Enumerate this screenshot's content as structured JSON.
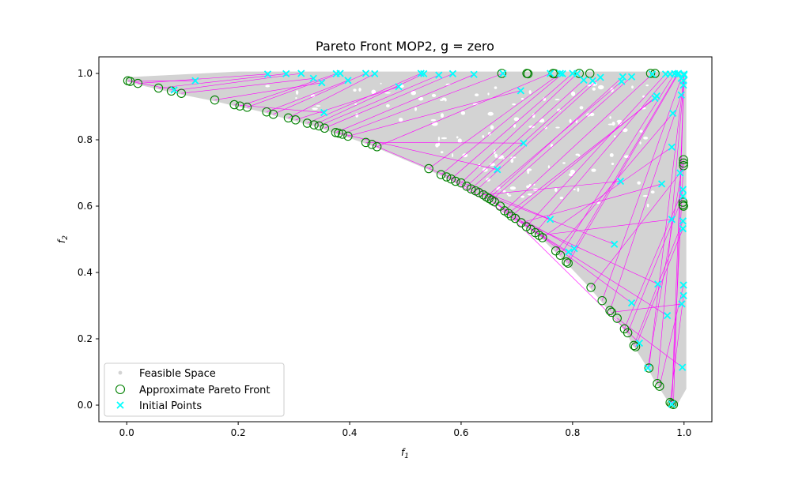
{
  "chart_data": {
    "type": "scatter",
    "title": "Pareto Front MOP2, g = zero",
    "xlabel": "f1",
    "ylabel": "f2",
    "xlim": [
      -0.05,
      1.05
    ],
    "ylim": [
      -0.05,
      1.05
    ],
    "xticks": [
      0.0,
      0.2,
      0.4,
      0.6,
      0.8,
      1.0
    ],
    "yticks": [
      0.0,
      0.2,
      0.4,
      0.6,
      0.8,
      1.0
    ],
    "xtick_labels": [
      "0.0",
      "0.2",
      "0.4",
      "0.6",
      "0.8",
      "1.0"
    ],
    "ytick_labels": [
      "0.0",
      "0.2",
      "0.4",
      "0.6",
      "0.8",
      "1.0"
    ],
    "grid": false,
    "legend_position": "lower-left",
    "colors": {
      "feasible": "#d3d3d3",
      "pareto": "#008000",
      "initial": "#00ffff",
      "connector": "#ff00ff"
    },
    "series": [
      {
        "name": "Feasible Space",
        "marker": "dot",
        "region": "filled area between the Pareto front curve f2 = 1 - exp(-((1 - f1 - ...)^2)) and the boundaries f2 = 1 (top) and f1 = 1 (right)"
      },
      {
        "name": "Approximate Pareto Front",
        "marker": "open-circle",
        "points": [
          [
            0.002,
            0.978
          ],
          [
            0.006,
            0.976
          ],
          [
            0.02,
            0.97
          ],
          [
            0.057,
            0.956
          ],
          [
            0.08,
            0.947
          ],
          [
            0.098,
            0.94
          ],
          [
            0.158,
            0.92
          ],
          [
            0.193,
            0.906
          ],
          [
            0.203,
            0.902
          ],
          [
            0.216,
            0.898
          ],
          [
            0.251,
            0.884
          ],
          [
            0.263,
            0.877
          ],
          [
            0.29,
            0.866
          ],
          [
            0.303,
            0.86
          ],
          [
            0.324,
            0.85
          ],
          [
            0.336,
            0.845
          ],
          [
            0.345,
            0.842
          ],
          [
            0.355,
            0.835
          ],
          [
            0.375,
            0.822
          ],
          [
            0.38,
            0.82
          ],
          [
            0.387,
            0.817
          ],
          [
            0.397,
            0.811
          ],
          [
            0.429,
            0.792
          ],
          [
            0.44,
            0.786
          ],
          [
            0.449,
            0.779
          ],
          [
            0.542,
            0.713
          ],
          [
            0.564,
            0.695
          ],
          [
            0.574,
            0.688
          ],
          [
            0.582,
            0.682
          ],
          [
            0.59,
            0.675
          ],
          [
            0.6,
            0.67
          ],
          [
            0.61,
            0.66
          ],
          [
            0.618,
            0.652
          ],
          [
            0.626,
            0.646
          ],
          [
            0.632,
            0.641
          ],
          [
            0.64,
            0.634
          ],
          [
            0.645,
            0.628
          ],
          [
            0.65,
            0.623
          ],
          [
            0.655,
            0.618
          ],
          [
            0.66,
            0.613
          ],
          [
            0.67,
            0.6
          ],
          [
            0.678,
            0.586
          ],
          [
            0.685,
            0.578
          ],
          [
            0.69,
            0.57
          ],
          [
            0.697,
            0.563
          ],
          [
            0.708,
            0.55
          ],
          [
            0.717,
            0.538
          ],
          [
            0.725,
            0.53
          ],
          [
            0.733,
            0.52
          ],
          [
            0.74,
            0.512
          ],
          [
            0.746,
            0.505
          ],
          [
            0.77,
            0.465
          ],
          [
            0.778,
            0.452
          ],
          [
            0.789,
            0.432
          ],
          [
            0.792,
            0.428
          ],
          [
            0.833,
            0.355
          ],
          [
            0.853,
            0.315
          ],
          [
            0.867,
            0.285
          ],
          [
            0.87,
            0.28
          ],
          [
            0.88,
            0.262
          ],
          [
            0.893,
            0.23
          ],
          [
            0.899,
            0.218
          ],
          [
            0.91,
            0.18
          ],
          [
            0.913,
            0.176
          ],
          [
            0.937,
            0.112
          ],
          [
            0.952,
            0.065
          ],
          [
            0.956,
            0.057
          ],
          [
            0.975,
            0.008
          ],
          [
            0.978,
            0.004
          ],
          [
            0.981,
            0.002
          ],
          [
            0.999,
            0.74
          ],
          [
            0.999,
            0.73
          ],
          [
            0.999,
            0.722
          ],
          [
            0.998,
            0.612
          ],
          [
            0.998,
            0.604
          ],
          [
            0.999,
            0.6
          ],
          [
            0.673,
            1.0
          ],
          [
            0.718,
            1.0
          ],
          [
            0.72,
            0.999
          ],
          [
            0.765,
            1.0
          ],
          [
            0.768,
            0.999
          ],
          [
            0.812,
            1.0
          ],
          [
            0.831,
            1.0
          ],
          [
            0.94,
            1.0
          ],
          [
            0.948,
            1.0
          ]
        ]
      },
      {
        "name": "Initial Points",
        "marker": "x",
        "points": [
          [
            0.085,
            0.95
          ],
          [
            0.123,
            0.978
          ],
          [
            0.253,
            0.998
          ],
          [
            0.286,
            0.999
          ],
          [
            0.313,
            1.0
          ],
          [
            0.335,
            0.985
          ],
          [
            0.35,
            0.972
          ],
          [
            0.354,
            0.882
          ],
          [
            0.376,
            0.999
          ],
          [
            0.383,
            1.0
          ],
          [
            0.397,
            0.979
          ],
          [
            0.429,
            1.0
          ],
          [
            0.445,
            0.999
          ],
          [
            0.488,
            0.96
          ],
          [
            0.528,
            1.0
          ],
          [
            0.533,
            0.999
          ],
          [
            0.56,
            0.995
          ],
          [
            0.585,
            0.999
          ],
          [
            0.623,
            0.997
          ],
          [
            0.665,
            0.71
          ],
          [
            0.675,
            1.0
          ],
          [
            0.707,
            0.948
          ],
          [
            0.712,
            0.79
          ],
          [
            0.76,
            0.56
          ],
          [
            0.76,
            1.0
          ],
          [
            0.778,
            1.0
          ],
          [
            0.782,
            0.999
          ],
          [
            0.793,
            0.462
          ],
          [
            0.8,
            1.0
          ],
          [
            0.803,
            0.472
          ],
          [
            0.808,
            0.999
          ],
          [
            0.82,
            0.98
          ],
          [
            0.836,
            0.978
          ],
          [
            0.85,
            0.988
          ],
          [
            0.875,
            0.485
          ],
          [
            0.886,
            0.675
          ],
          [
            0.888,
            0.976
          ],
          [
            0.89,
            0.99
          ],
          [
            0.906,
            0.99
          ],
          [
            0.906,
            0.308
          ],
          [
            0.92,
            0.187
          ],
          [
            0.943,
            0.998
          ],
          [
            0.948,
            0.925
          ],
          [
            0.951,
            0.932
          ],
          [
            0.953,
            0.365
          ],
          [
            0.96,
            0.667
          ],
          [
            0.967,
            0.998
          ],
          [
            0.97,
            0.27
          ],
          [
            0.975,
            0.998
          ],
          [
            0.978,
            0.56
          ],
          [
            0.978,
            0.778
          ],
          [
            0.98,
            0.88
          ],
          [
            0.983,
            0.999
          ],
          [
            0.988,
            0.998
          ],
          [
            0.99,
            1.0
          ],
          [
            0.993,
            0.7
          ],
          [
            0.995,
            0.985
          ],
          [
            0.995,
            0.935
          ],
          [
            0.996,
            0.305
          ],
          [
            0.997,
            0.114
          ],
          [
            0.998,
            0.65
          ],
          [
            0.998,
            0.63
          ],
          [
            0.998,
            0.555
          ],
          [
            0.998,
            0.532
          ],
          [
            0.999,
            0.978
          ],
          [
            0.999,
            0.965
          ],
          [
            0.999,
            0.362
          ],
          [
            0.999,
            0.33
          ],
          [
            1.0,
            0.998
          ],
          [
            1.0,
            0.995
          ],
          [
            0.935,
            0.112
          ],
          [
            0.978,
            0.003
          ]
        ]
      }
    ]
  }
}
